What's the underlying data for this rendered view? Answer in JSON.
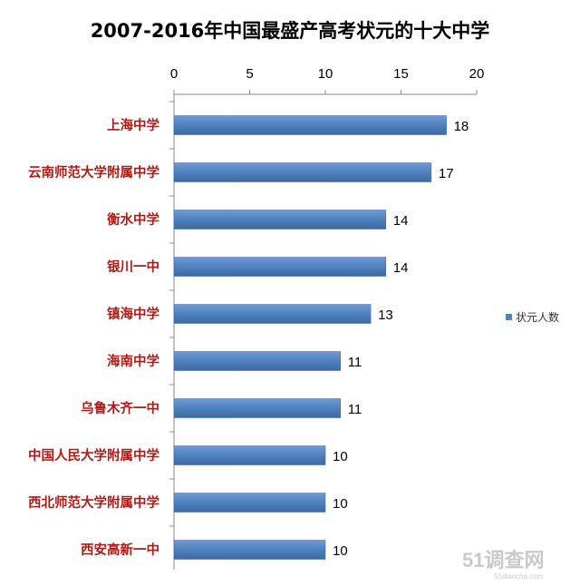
{
  "chart_data": {
    "type": "bar",
    "orientation": "horizontal",
    "title": "2007-2016年中国最盛产高考状元的十大中学",
    "categories": [
      "上海中学",
      "云南师范大学附属中学",
      "衡水中学",
      "银川一中",
      "镇海中学",
      "海南中学",
      "乌鲁木齐一中",
      "中国人民大学附属中学",
      "西北师范大学附属中学",
      "西安高新一中"
    ],
    "series": [
      {
        "name": "状元人数",
        "values": [
          18,
          17,
          14,
          14,
          13,
          11,
          11,
          10,
          10,
          10
        ],
        "color": "#4f81bd"
      }
    ],
    "xlim": [
      0,
      20
    ],
    "xticks": [
      0,
      5,
      10,
      15,
      20
    ],
    "x_axis_position": "top",
    "grid": false,
    "legend": "right",
    "data_labels": true,
    "label_color": "#b01a14"
  },
  "watermark": {
    "main": "51调查网",
    "sub": "51diaocha.com"
  }
}
